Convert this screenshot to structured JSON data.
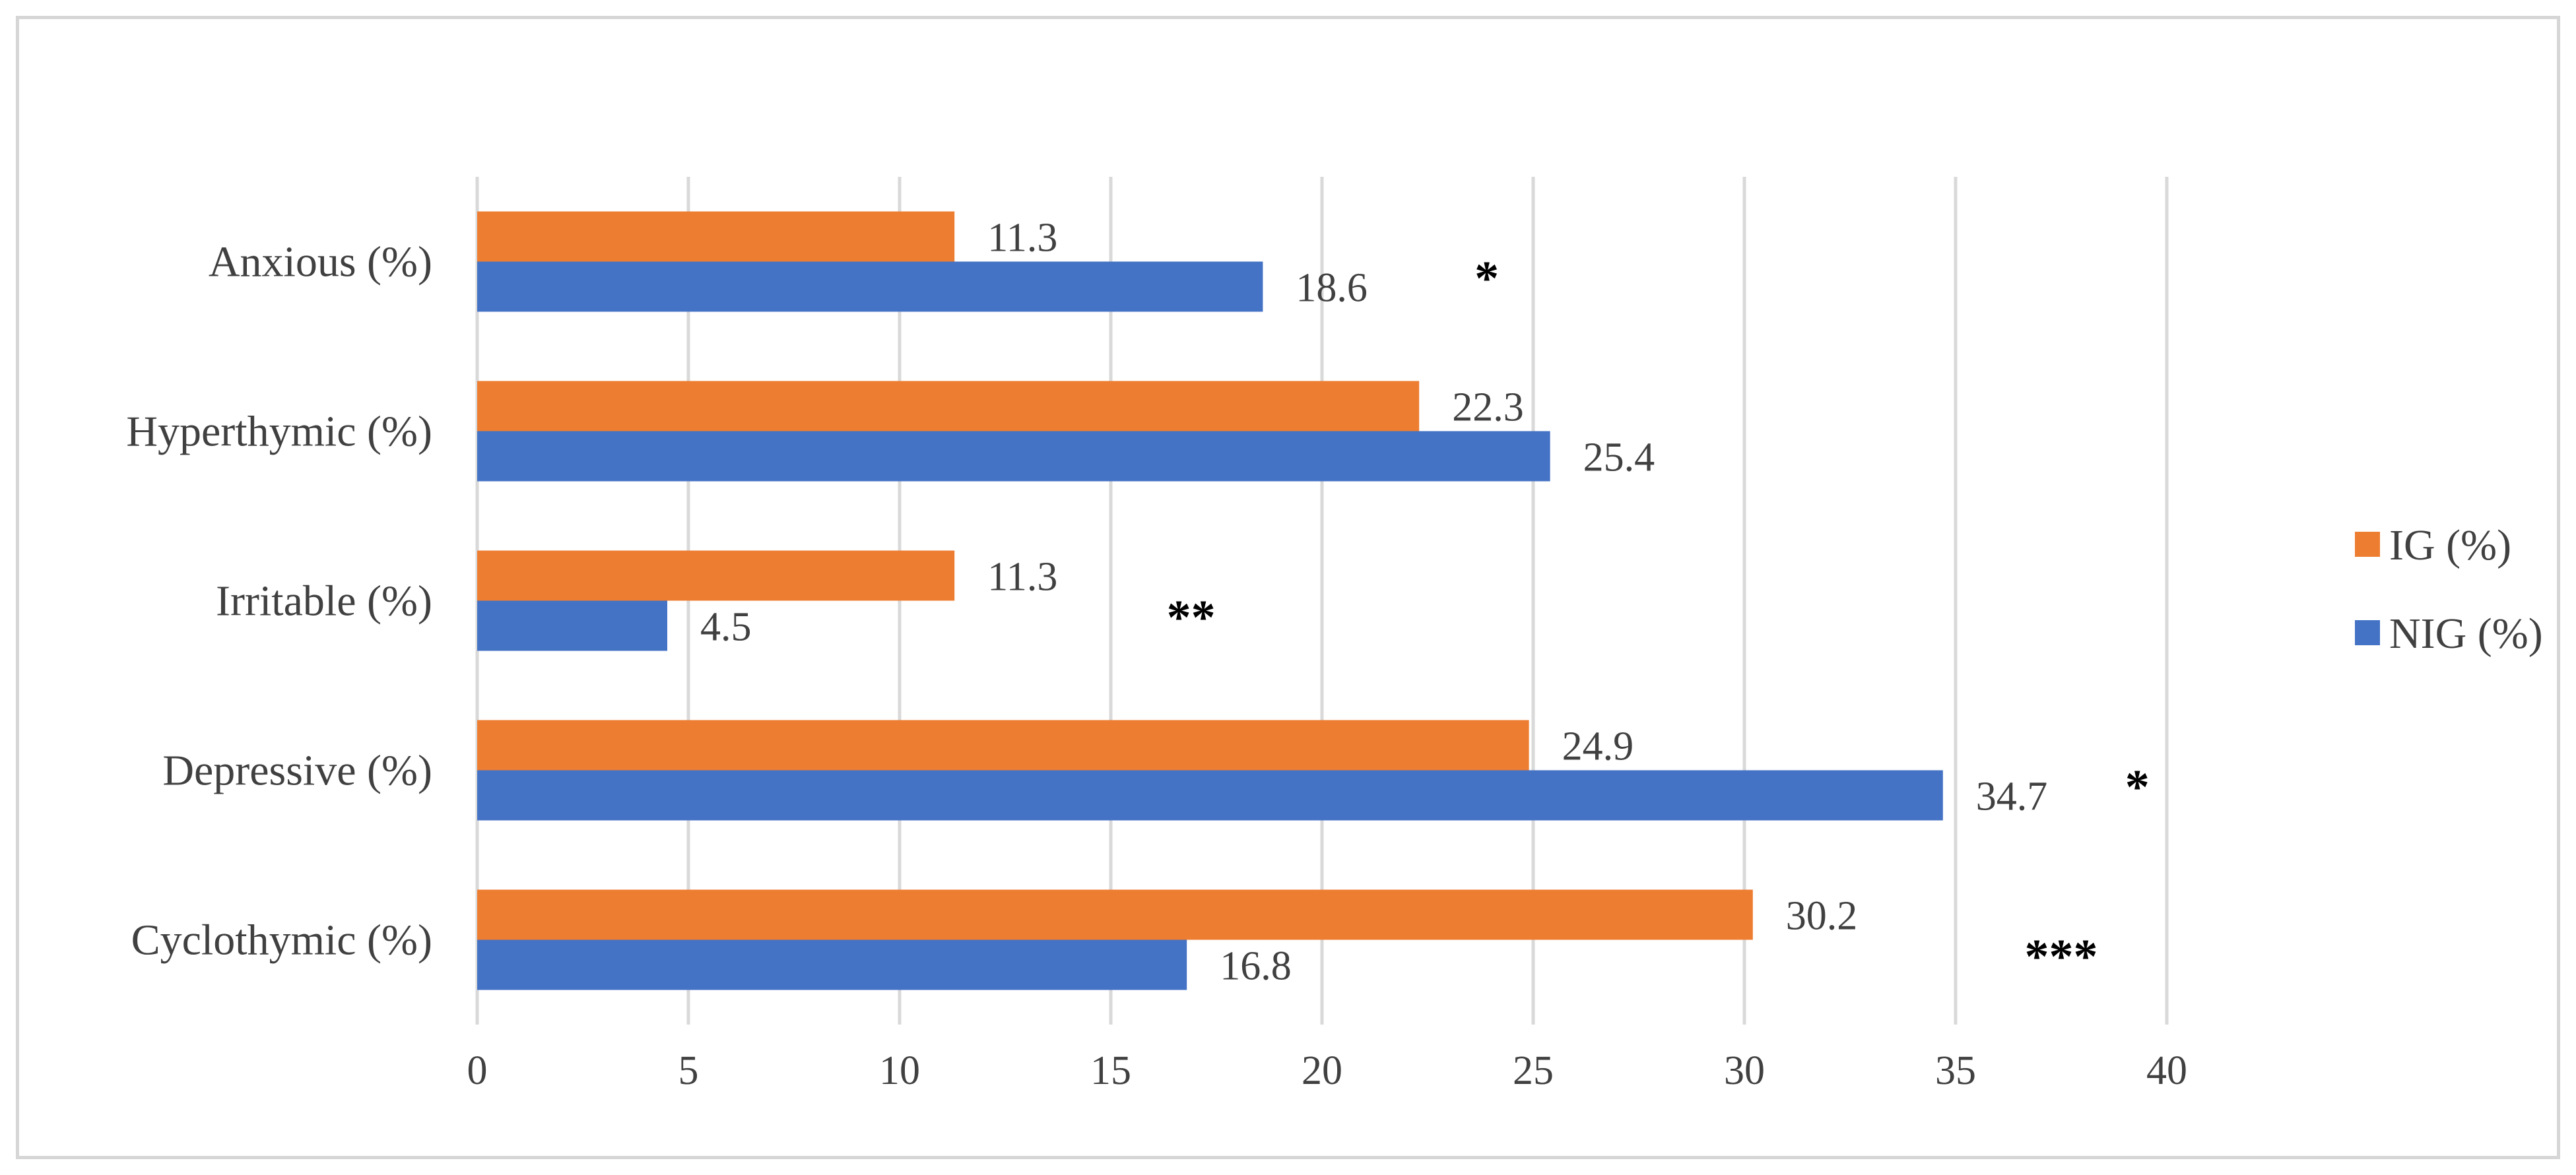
{
  "chart_data": {
    "type": "bar",
    "orientation": "horizontal",
    "title": "",
    "xlabel": "",
    "ylabel": "",
    "categories": [
      "Cyclothymic (%)",
      "Depressive (%)",
      "Irritable (%)",
      "Hyperthymic (%)",
      "Anxious (%)"
    ],
    "series": [
      {
        "name": "IG (%)",
        "color": "#ED7D31",
        "values": [
          30.2,
          24.9,
          11.3,
          22.3,
          11.3
        ]
      },
      {
        "name": "NIG (%)",
        "color": "#4472C4",
        "values": [
          16.8,
          34.7,
          4.5,
          25.4,
          18.6
        ]
      }
    ],
    "xlim": [
      0,
      40
    ],
    "xticks": [
      "0",
      "5",
      "10",
      "15",
      "20",
      "25",
      "30",
      "35",
      "40"
    ],
    "grid": true,
    "legend_position": "right",
    "annotations": [
      {
        "category": "Cyclothymic (%)",
        "text": "***",
        "at": 37.5
      },
      {
        "category": "Depressive (%)",
        "text": "*",
        "at": 39.3
      },
      {
        "category": "Irritable (%)",
        "text": "**",
        "at": 16.9
      },
      {
        "category": "Anxious (%)",
        "text": "*",
        "at": 23.9
      }
    ]
  }
}
